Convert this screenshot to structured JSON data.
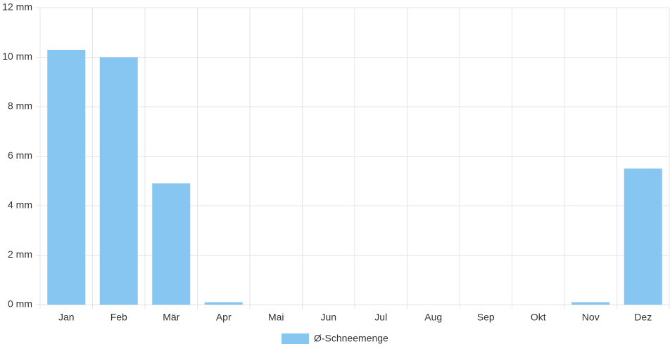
{
  "chart_data": {
    "type": "bar",
    "categories": [
      "Jan",
      "Feb",
      "Mär",
      "Apr",
      "Mai",
      "Jun",
      "Jul",
      "Aug",
      "Sep",
      "Okt",
      "Nov",
      "Dez"
    ],
    "series": [
      {
        "name": "Ø-Schneemenge",
        "color": "#88c6f2",
        "values": [
          10.3,
          10.0,
          4.9,
          0.1,
          0,
          0,
          0,
          0,
          0,
          0,
          0.1,
          5.5
        ]
      }
    ],
    "ylim": [
      0,
      12
    ],
    "yticks": [
      {
        "value": 0,
        "label": "0 mm"
      },
      {
        "value": 2,
        "label": "2 mm"
      },
      {
        "value": 4,
        "label": "4 mm"
      },
      {
        "value": 6,
        "label": "6 mm"
      },
      {
        "value": 8,
        "label": "8 mm"
      },
      {
        "value": 10,
        "label": "10 mm"
      },
      {
        "value": 12,
        "label": "12 mm"
      }
    ],
    "grid": true,
    "legend": "bottom"
  }
}
